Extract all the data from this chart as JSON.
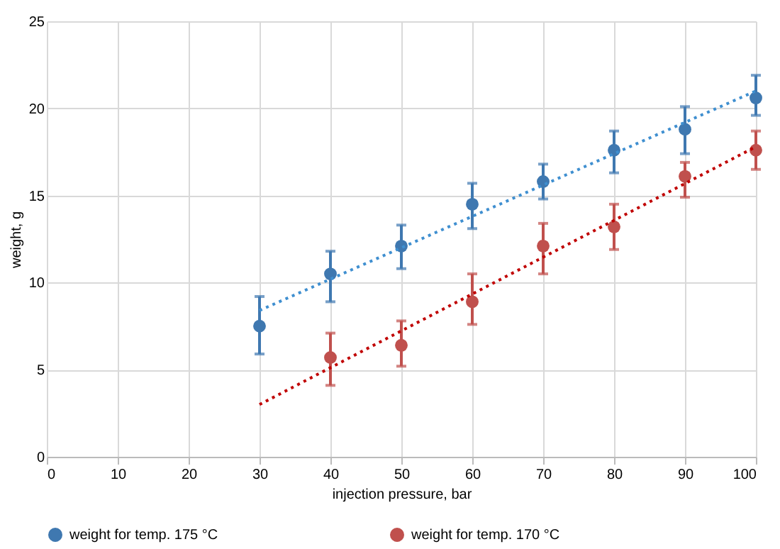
{
  "chart_data": {
    "type": "scatter",
    "xlabel": "injection pressure, bar",
    "ylabel": "weight, g",
    "xlim": [
      0,
      100
    ],
    "xticks": [
      0,
      10,
      20,
      30,
      40,
      50,
      60,
      70,
      80,
      90,
      100
    ],
    "ylim": [
      0,
      25
    ],
    "yticks": [
      0,
      5,
      10,
      15,
      20,
      25
    ],
    "grid": true,
    "legend": "bottom",
    "marker": "circle",
    "series": [
      {
        "name": "weight for temp. 175 °C",
        "color": "#3f78b0",
        "x": [
          30,
          40,
          50,
          60,
          70,
          80,
          90,
          100
        ],
        "values": [
          7.5,
          10.5,
          12.1,
          14.5,
          15.8,
          17.6,
          18.8,
          20.6
        ],
        "errors": [
          [
            5.9,
            9.2
          ],
          [
            8.9,
            11.8
          ],
          [
            10.8,
            13.3
          ],
          [
            13.1,
            15.7
          ],
          [
            14.8,
            16.8
          ],
          [
            16.3,
            18.7
          ],
          [
            17.4,
            20.1
          ],
          [
            19.6,
            21.9
          ]
        ]
      },
      {
        "name": "weight for temp. 170 °C",
        "color": "#c0504d",
        "x": [
          40,
          50,
          60,
          70,
          80,
          90,
          100
        ],
        "values": [
          5.7,
          6.4,
          8.9,
          12.1,
          13.2,
          16.1,
          17.6
        ],
        "errors": [
          [
            4.1,
            7.1
          ],
          [
            5.2,
            7.8
          ],
          [
            7.6,
            10.5
          ],
          [
            10.5,
            13.4
          ],
          [
            11.9,
            14.5
          ],
          [
            14.9,
            16.9
          ],
          [
            16.5,
            18.7
          ]
        ]
      },
      {
        "type": "line",
        "color": "#3f8fd0",
        "line_style": "dotted",
        "marker": "none",
        "x": [
          30,
          100
        ],
        "values": [
          8.4,
          21.0
        ]
      },
      {
        "type": "line",
        "color": "#c00000",
        "line_style": "dotted",
        "marker": "none",
        "x": [
          30,
          100
        ],
        "values": [
          3.0,
          17.8
        ]
      }
    ]
  }
}
